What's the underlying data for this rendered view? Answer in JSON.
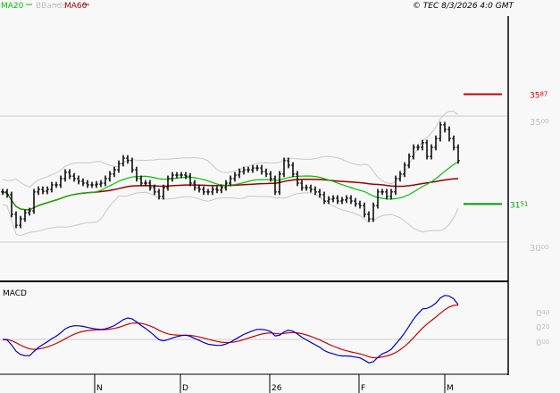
{
  "header": {
    "legend": [
      {
        "label": "MA20",
        "color": "#00c000"
      },
      {
        "label": "BBands",
        "color": "#c0c0c0"
      },
      {
        "label": "MA60",
        "color": "#990000"
      }
    ],
    "copyright": "© TEC 8/3/2026 4:0 GMT"
  },
  "chart_data": [
    {
      "type": "bar",
      "panel": "price",
      "ylim": [
        29.0,
        37.0
      ],
      "y_ticks": [
        {
          "value": 35.0,
          "int": "35",
          "dec": "00"
        },
        {
          "value": 30.0,
          "int": "30",
          "dec": "00"
        }
      ],
      "x_ticks": [
        "N",
        "D",
        "26",
        "F",
        "M"
      ],
      "grid": "horizontal at ticks",
      "series": [
        {
          "name": "MA20",
          "type": "line",
          "color": "#00c000"
        },
        {
          "name": "BBands",
          "type": "band",
          "color": "#c0c0c0"
        },
        {
          "name": "MA60",
          "type": "line",
          "color": "#990000"
        }
      ],
      "close": [
        31.99,
        31.88,
        31.1,
        30.67,
        30.92,
        31.17,
        31.24,
        31.99,
        32.09,
        32.02,
        32.09,
        32.27,
        32.27,
        32.52,
        32.77,
        32.62,
        32.52,
        32.41,
        32.34,
        32.27,
        32.27,
        32.3,
        32.34,
        32.52,
        32.7,
        32.87,
        33.12,
        33.33,
        33.23,
        32.87,
        32.52,
        32.34,
        32.34,
        32.16,
        31.99,
        31.81,
        32.16,
        32.52,
        32.66,
        32.66,
        32.66,
        32.62,
        32.34,
        32.16,
        32.09,
        31.99,
        31.99,
        32.09,
        32.06,
        32.16,
        32.34,
        32.52,
        32.66,
        32.8,
        32.87,
        32.87,
        32.94,
        32.94,
        32.8,
        32.7,
        32.52,
        31.99,
        32.7,
        33.23,
        33.05,
        32.7,
        32.34,
        32.16,
        32.16,
        32.09,
        31.99,
        31.88,
        31.63,
        31.7,
        31.74,
        31.63,
        31.67,
        31.74,
        31.63,
        31.52,
        31.45,
        31.1,
        30.92,
        31.45,
        31.99,
        31.99,
        31.81,
        31.99,
        32.52,
        32.7,
        33.05,
        33.4,
        33.76,
        33.76,
        33.94,
        33.4,
        33.76,
        34.11,
        34.65,
        34.47,
        34.11,
        33.76,
        33.23
      ],
      "levels": [
        {
          "value": 35.87,
          "int": "35",
          "dec": "87",
          "color": "#cc0000",
          "kind": "resistance"
        },
        {
          "value": 31.51,
          "int": "31",
          "dec": "51",
          "color": "#009900",
          "kind": "support"
        }
      ]
    },
    {
      "type": "line",
      "panel": "macd",
      "title": "MACD",
      "ylim": [
        -0.5,
        0.8
      ],
      "y_ticks": [
        {
          "value": 0.4,
          "int": "0",
          "dec": "40"
        },
        {
          "value": 0.2,
          "int": "0",
          "dec": "20"
        },
        {
          "value": 0.0,
          "int": "0",
          "dec": "00"
        }
      ],
      "series": [
        {
          "name": "MACD",
          "color": "#0000cc"
        },
        {
          "name": "Signal",
          "color": "#cc0000"
        }
      ]
    }
  ]
}
